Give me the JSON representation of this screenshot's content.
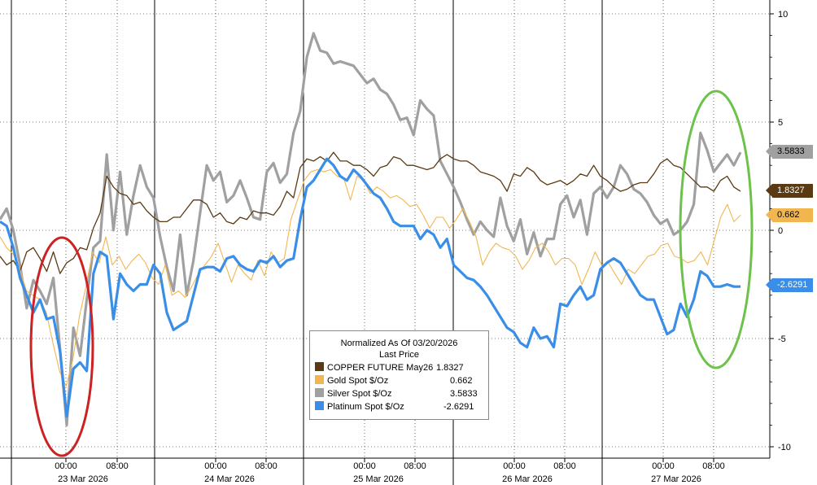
{
  "chart_data": {
    "type": "line",
    "legend": {
      "title_line1": "Normalized As Of 03/20/2026",
      "title_line2": "Last Price",
      "position": "bottom-center"
    },
    "series": [
      {
        "name": "COPPER FUTURE May26",
        "last": "1.8327",
        "color": "#5a3a12",
        "values": [
          -1.2,
          -1.6,
          -1.4,
          -1.9,
          -1.0,
          -0.8,
          -1.3,
          -1.9,
          -1.0,
          -2.0,
          -1.5,
          -1.3,
          -0.8,
          -0.9,
          0.1,
          0.8,
          2.5,
          2.0,
          1.7,
          1.6,
          1.2,
          1.3,
          0.9,
          0.6,
          0.4,
          0.4,
          0.6,
          0.6,
          1.0,
          1.4,
          1.4,
          1.2,
          0.6,
          0.8,
          0.4,
          0.3,
          0.6,
          0.5,
          0.9,
          0.8,
          0.8,
          0.7,
          1.1,
          1.8,
          1.5,
          2.9,
          3.3,
          3.2,
          3.4,
          3.2,
          3.6,
          3.2,
          3.2,
          3.0,
          3.0,
          2.8,
          2.5,
          2.9,
          3.0,
          3.4,
          3.3,
          3.0,
          3.0,
          2.9,
          2.8,
          2.9,
          3.3,
          3.5,
          3.3,
          3.2,
          3.2,
          3.0,
          2.7,
          2.6,
          2.5,
          2.3,
          1.8,
          2.6,
          2.5,
          2.9,
          2.7,
          2.3,
          2.1,
          2.2,
          2.3,
          2.1,
          2.3,
          2.6,
          2.5,
          3.0,
          2.5,
          2.3,
          2.0,
          1.8,
          1.9,
          2.1,
          2.2,
          2.2,
          2.6,
          3.1,
          3.3,
          3.0,
          2.9,
          2.6,
          2.3,
          2.0,
          2.0,
          1.8,
          2.3,
          2.5,
          2.0,
          1.8
        ]
      },
      {
        "name": "Gold Spot $/Oz",
        "last": "0.662",
        "color": "#f2b650",
        "values": [
          -0.3,
          -0.8,
          -1.1,
          -1.8,
          -2.8,
          -3.0,
          -3.2,
          -3.8,
          -5.2,
          -6.5,
          -7.2,
          -6.0,
          -4.0,
          -2.6,
          -1.0,
          -1.5,
          -0.3,
          -1.6,
          -1.2,
          -1.8,
          -1.4,
          -1.1,
          -1.5,
          -2.2,
          -2.5,
          -1.6,
          -3.0,
          -2.8,
          -3.1,
          -2.6,
          -2.0,
          -1.6,
          -1.2,
          -0.6,
          -1.5,
          -2.4,
          -1.6,
          -2.0,
          -2.3,
          -1.4,
          -2.1,
          -1.0,
          -1.5,
          -1.3,
          0.5,
          1.4,
          2.3,
          2.7,
          2.8,
          2.7,
          2.8,
          2.5,
          2.4,
          1.4,
          2.5,
          2.3,
          1.7,
          2.0,
          1.8,
          1.5,
          1.6,
          1.4,
          1.1,
          1.2,
          0.7,
          0.1,
          0.6,
          0.6,
          0.1,
          0.5,
          1.0,
          0.4,
          -0.3,
          -1.6,
          -1.0,
          -0.6,
          -0.8,
          -0.9,
          -1.2,
          -1.8,
          -1.4,
          -0.8,
          -0.6,
          -1.0,
          -1.6,
          -1.3,
          -1.3,
          -1.6,
          -2.5,
          -1.8,
          -1.0,
          -1.6,
          -1.5,
          -2.0,
          -2.5,
          -1.8,
          -2.0,
          -1.6,
          -1.2,
          -1.1,
          -0.7,
          -0.6,
          -1.2,
          -1.3,
          -1.5,
          -1.4,
          -1.0,
          -1.6,
          -0.5,
          0.6,
          1.2,
          0.4,
          0.7
        ]
      },
      {
        "name": "Silver Spot $/Oz",
        "last": "3.5833",
        "color": "#a0a0a0",
        "values": [
          0.5,
          1.0,
          0.0,
          -1.6,
          -3.6,
          -2.3,
          -2.8,
          -3.4,
          -2.2,
          -5.5,
          -9.0,
          -4.5,
          -5.8,
          -3.2,
          -0.8,
          -0.5,
          3.5,
          0.0,
          2.7,
          -0.2,
          1.6,
          3.0,
          2.0,
          1.5,
          -0.3,
          -1.7,
          -2.8,
          -0.2,
          -3.0,
          -1.4,
          0.8,
          3.0,
          2.3,
          2.7,
          1.3,
          1.6,
          2.3,
          1.5,
          0.6,
          0.5,
          2.7,
          3.1,
          2.2,
          2.6,
          4.5,
          5.5,
          8.0,
          9.1,
          8.3,
          8.2,
          7.7,
          7.8,
          7.7,
          7.6,
          7.2,
          6.8,
          7.0,
          6.5,
          6.3,
          5.8,
          5.1,
          5.2,
          4.4,
          6.0,
          5.6,
          5.3,
          3.2,
          2.6,
          2.0,
          1.3,
          0.5,
          -0.2,
          0.4,
          0.0,
          -0.3,
          1.5,
          0.2,
          -0.5,
          0.5,
          -1.1,
          -0.1,
          -1.2,
          -0.4,
          -0.4,
          1.2,
          1.6,
          0.6,
          1.4,
          -0.2,
          1.7,
          2.0,
          1.5,
          2.0,
          3.0,
          2.6,
          1.9,
          1.7,
          1.3,
          0.7,
          0.3,
          0.5,
          -0.2,
          0.0,
          0.4,
          1.2,
          4.5,
          3.7,
          2.7,
          3.1,
          3.5,
          3.0,
          3.6
        ]
      },
      {
        "name": "Platinum Spot $/Oz",
        "last": "-2.6291",
        "color": "#3a8ee8",
        "values": [
          0.4,
          0.2,
          -0.8,
          -2.2,
          -3.0,
          -3.8,
          -3.2,
          -4.1,
          -4.0,
          -5.6,
          -8.6,
          -6.4,
          -6.1,
          -6.5,
          -2.0,
          -1.0,
          -1.2,
          -4.1,
          -2.0,
          -2.5,
          -2.8,
          -2.5,
          -2.5,
          -1.6,
          -2.0,
          -3.8,
          -4.6,
          -4.4,
          -4.2,
          -3.0,
          -1.8,
          -1.7,
          -1.7,
          -1.9,
          -1.3,
          -1.2,
          -1.6,
          -1.8,
          -1.9,
          -1.4,
          -1.5,
          -1.2,
          -1.7,
          -1.4,
          -1.3,
          0.5,
          2.0,
          2.3,
          2.8,
          3.3,
          3.0,
          2.5,
          2.3,
          2.8,
          2.5,
          2.1,
          1.7,
          1.5,
          1.0,
          0.4,
          0.2,
          0.2,
          0.2,
          -0.4,
          0.0,
          -0.2,
          -0.8,
          -0.4,
          -1.6,
          -1.9,
          -2.2,
          -2.3,
          -2.6,
          -3.0,
          -3.5,
          -4.0,
          -4.5,
          -4.7,
          -5.2,
          -5.4,
          -4.5,
          -5.0,
          -4.9,
          -5.4,
          -3.4,
          -3.5,
          -3.0,
          -2.6,
          -3.2,
          -3.0,
          -1.8,
          -1.5,
          -1.3,
          -1.5,
          -2.0,
          -2.5,
          -3.0,
          -3.2,
          -3.2,
          -4.0,
          -4.8,
          -4.6,
          -3.4,
          -4.0,
          -3.2,
          -1.9,
          -2.1,
          -2.6,
          -2.6,
          -2.5,
          -2.6,
          -2.6
        ]
      }
    ],
    "y_axis": {
      "side": "right",
      "ticks": [
        "10",
        "5",
        "0",
        "-5",
        "-10"
      ],
      "ylim": [
        -10,
        10
      ],
      "grid": true
    },
    "x_axis": {
      "time_ticks": [
        "00:00",
        "08:00",
        "00:00",
        "08:00",
        "00:00",
        "08:00",
        "00:00",
        "08:00",
        "00:00",
        "08:00"
      ],
      "date_labels": [
        "23 Mar 2026",
        "24 Mar 2026",
        "25 Mar 2026",
        "26 Mar 2026",
        "27 Mar 2026"
      ]
    },
    "tags": [
      {
        "label": "3.5833",
        "color": "#a0a0a0"
      },
      {
        "label": "1.8327",
        "color": "#5a3a12",
        "text_color": "#ffffff"
      },
      {
        "label": "0.662",
        "color": "#f2b650"
      },
      {
        "label": "-2.6291",
        "color": "#3a8ee8",
        "text_color": "#ffffff"
      }
    ],
    "annotations": [
      {
        "shape": "ellipse",
        "color": "#cc2222",
        "around": "23 Mar 2026 early selloff"
      },
      {
        "shape": "ellipse",
        "color": "#6cc24a",
        "around": "27 Mar 2026 rebound"
      }
    ]
  }
}
